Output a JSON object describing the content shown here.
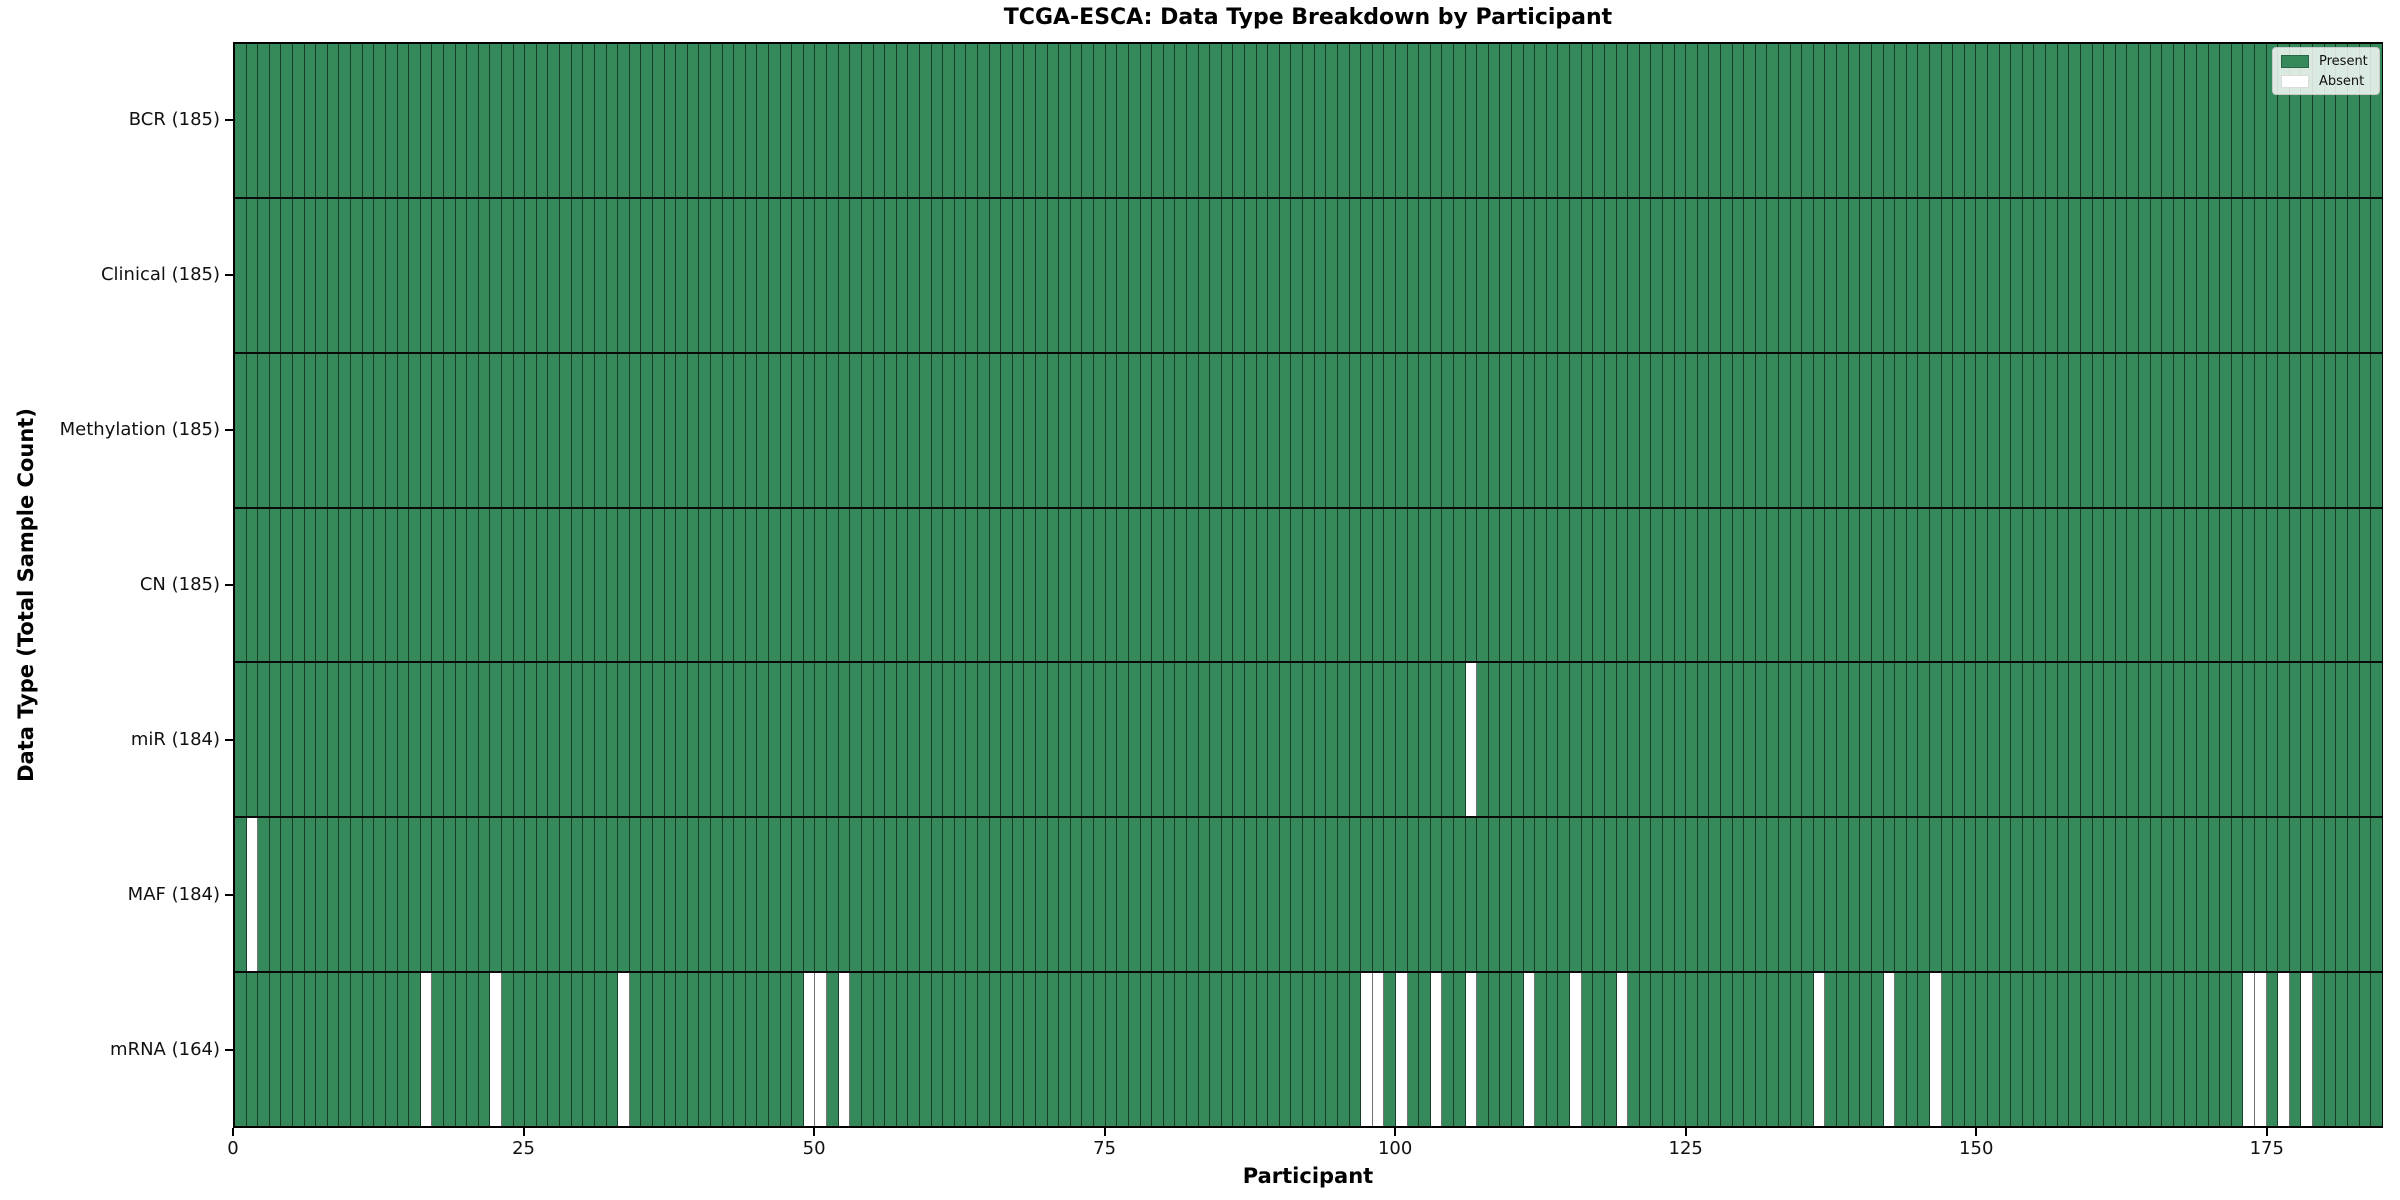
{
  "chart_data": {
    "type": "heatmap",
    "title": "TCGA-ESCA: Data Type Breakdown by Participant",
    "xlabel": "Participant",
    "ylabel": "Data Type (Total Sample Count)",
    "n_participants": 185,
    "x_ticks": [
      0,
      25,
      50,
      75,
      100,
      125,
      150,
      175
    ],
    "x_range": [
      0,
      185
    ],
    "grid": false,
    "rows": [
      {
        "label": "BCR (185)",
        "total": 185,
        "absent": []
      },
      {
        "label": "Clinical (185)",
        "total": 185,
        "absent": []
      },
      {
        "label": "Methylation (185)",
        "total": 185,
        "absent": []
      },
      {
        "label": "CN (185)",
        "total": 185,
        "absent": []
      },
      {
        "label": "miR (184)",
        "total": 184,
        "absent": [
          106
        ]
      },
      {
        "label": "MAF (184)",
        "total": 184,
        "absent": [
          1
        ]
      },
      {
        "label": "mRNA (164)",
        "total": 164,
        "absent": [
          16,
          22,
          33,
          49,
          50,
          52,
          97,
          98,
          100,
          103,
          106,
          111,
          115,
          119,
          136,
          142,
          146,
          173,
          174,
          176,
          178
        ]
      }
    ],
    "legend": {
      "position": "upper-right",
      "entries": [
        {
          "label": "Present",
          "color": "#35895A"
        },
        {
          "label": "Absent",
          "color": "#FFFFFF"
        }
      ]
    },
    "colors": {
      "present": "#35895A",
      "absent": "#FFFFFF",
      "cell_edge": "rgba(0,0,0,0.55)",
      "row_separator": "#0A0A0A",
      "spine": "#000000"
    }
  }
}
